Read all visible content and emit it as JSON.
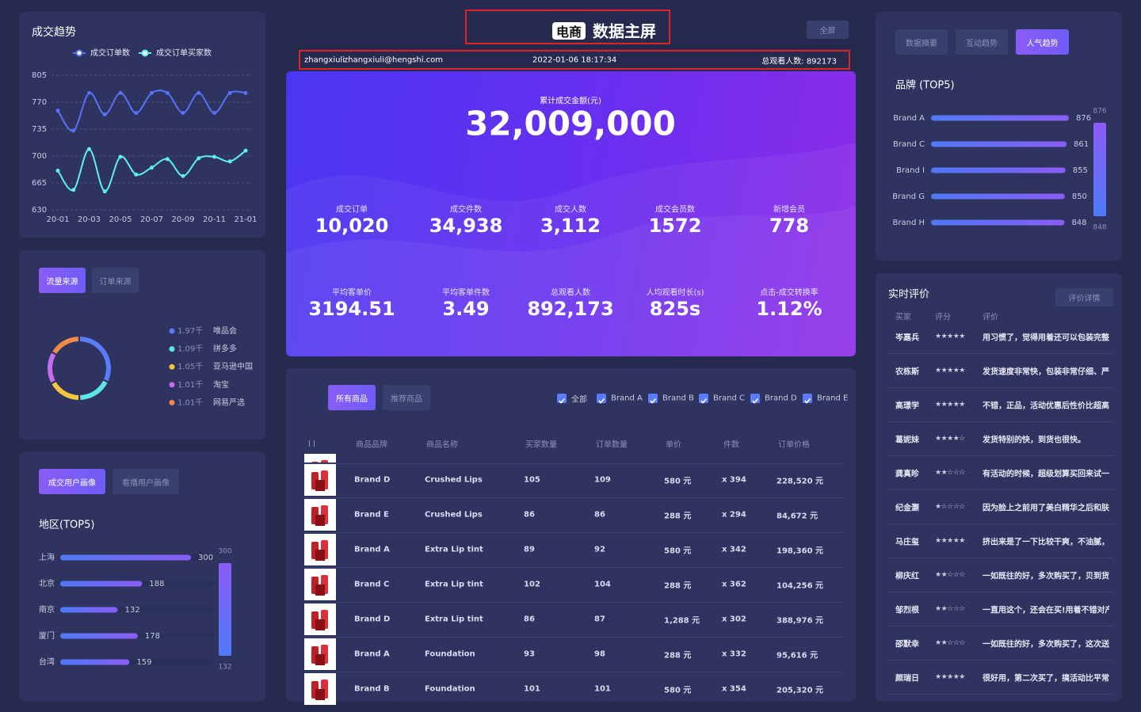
{
  "header": {
    "logo": "电商",
    "title": "数据主屏",
    "fullscreen": "全屏",
    "user": "zhangxiuli",
    "email": "zhangxiuli@hengshi.com",
    "datetime": "2022-01-06  18:17:34",
    "viewers": "总观看人数: 892173"
  },
  "kpi": {
    "total_label": "累计成交金额(元)",
    "total_value": "32,009,000",
    "items": [
      {
        "label": "成交订单",
        "value": "10,020"
      },
      {
        "label": "成交件数",
        "value": "34,938"
      },
      {
        "label": "成交人数",
        "value": "3,112"
      },
      {
        "label": "成交会员数",
        "value": "1572"
      },
      {
        "label": "新增会员",
        "value": "778"
      },
      {
        "label": "平均客单价",
        "value": "3194.51"
      },
      {
        "label": "平均客单件数",
        "value": "3.49"
      },
      {
        "label": "总观看人数",
        "value": "892,173"
      },
      {
        "label": "人均观看时长(s)",
        "value": "825s"
      },
      {
        "label": "点击-成交转换率",
        "value": "1.12%"
      }
    ]
  },
  "chart_data": [
    {
      "type": "line",
      "title": "成交趋势",
      "categories": [
        "20-01",
        null,
        "20-03",
        null,
        "20-05",
        null,
        "20-07",
        null,
        "20-09",
        null,
        "20-11",
        null,
        "21-01"
      ],
      "series": [
        {
          "name": "成交订单数",
          "color": "#5673f7",
          "values": [
            759,
            733,
            782,
            754,
            782,
            756,
            782,
            782,
            756,
            782,
            756,
            782,
            782
          ]
        },
        {
          "name": "成交订单买家数",
          "color": "#5ef0ee",
          "values": [
            681,
            656,
            709,
            654,
            699,
            676,
            685,
            696,
            674,
            697,
            699,
            693,
            707
          ]
        }
      ],
      "ylim": [
        630,
        805
      ],
      "yticks": [
        630,
        665,
        700,
        735,
        770,
        805
      ],
      "grid": true,
      "legend": "top"
    },
    {
      "type": "donut",
      "tabs": [
        "流量来源",
        "订单来源"
      ],
      "active_tab": 0,
      "categories": [
        "唯品会",
        "拼多多",
        "亚马逊中国",
        "淘宝",
        "网易严选"
      ],
      "values": [
        1.97,
        1.09,
        1.05,
        1.01,
        1.01
      ],
      "value_labels": [
        "1.97千",
        "1.09千",
        "1.05千",
        "1.01千",
        "1.01千"
      ],
      "colors": [
        "#5b7cfa",
        "#5ee6e6",
        "#f5c542",
        "#c66cf0",
        "#f08a4b"
      ]
    },
    {
      "type": "hbar",
      "tabs": [
        "成交用户画像",
        "看播用户画像"
      ],
      "active_tab": 0,
      "title": "地区(TOP5)",
      "categories": [
        "上海",
        "北京",
        "南京",
        "厦门",
        "台湾"
      ],
      "values": [
        300,
        188,
        132,
        178,
        159
      ],
      "colors": [
        "#4f7af7",
        "#8b5cf6"
      ],
      "visual_map": {
        "max": 300,
        "min": 132
      }
    },
    {
      "type": "hbar",
      "tabs": [
        "数据摘要",
        "互动趋势",
        "人气趋势"
      ],
      "active_tab": 2,
      "title": "品牌 (TOP5)",
      "categories": [
        "Brand A",
        "Brand C",
        "Brand I",
        "Brand G",
        "Brand H"
      ],
      "values": [
        876,
        861,
        855,
        850,
        848
      ],
      "colors": [
        "#4f7af7",
        "#8b5cf6"
      ],
      "visual_map": {
        "max": 876,
        "min": 848
      }
    }
  ],
  "table": {
    "tabs": [
      "所有商品",
      "推荐商品"
    ],
    "active_tab": 0,
    "filters": [
      "全部",
      "Brand A",
      "Brand B",
      "Brand C",
      "Brand D",
      "Brand E"
    ],
    "columns": [
      "商品品牌",
      "商品名称",
      "买家数量",
      "订单数量",
      "单价",
      "件数",
      "订单价格"
    ],
    "rows": [
      [
        "Brand D",
        "Crushed Lips",
        "105",
        "109",
        "580 元",
        "x 394",
        "228,520 元"
      ],
      [
        "Brand E",
        "Crushed Lips",
        "86",
        "86",
        "288 元",
        "x 294",
        "84,672 元"
      ],
      [
        "Brand A",
        "Extra Lip tint",
        "89",
        "92",
        "580 元",
        "x 342",
        "198,360 元"
      ],
      [
        "Brand C",
        "Extra Lip tint",
        "102",
        "104",
        "288 元",
        "x 362",
        "104,256 元"
      ],
      [
        "Brand D",
        "Extra Lip tint",
        "86",
        "87",
        "1,288 元",
        "x 302",
        "388,976 元"
      ],
      [
        "Brand A",
        "Foundation",
        "93",
        "98",
        "288 元",
        "x 332",
        "95,616 元"
      ],
      [
        "Brand B",
        "Foundation",
        "101",
        "101",
        "580 元",
        "x 354",
        "205,320 元"
      ]
    ]
  },
  "reviews": {
    "title": "实时评价",
    "button": "评价详情",
    "columns": [
      "买家",
      "评分",
      "评价"
    ],
    "rows": [
      [
        "岑嘉兵",
        "★★★★★",
        "用习惯了，觉得用着还可以包装完整"
      ],
      [
        "农栋斯",
        "★★★★★",
        "发货速度非常快，包装非常仔细、严"
      ],
      [
        "高璟学",
        "★★★★★",
        "不错，正品，活动优惠后性价比超高"
      ],
      [
        "葛妮妹",
        "★★★★☆",
        "发货特别的快，到货也很快。"
      ],
      [
        "龚真昣",
        "★★☆☆☆",
        "有活动的时候，超级划算买回来试一"
      ],
      [
        "纪金灏",
        "★☆☆☆☆",
        "因为脸上之前用了美白精华之后和肤"
      ],
      [
        "马庄玺",
        "★★★★★",
        "挤出来是了一下比较干爽，不油腻，"
      ],
      [
        "柳庆红",
        "★★☆☆☆",
        "一如既往的好，多次购买了，贝到货"
      ],
      [
        "邹烈根",
        "★★☆☆☆",
        "一直用这个，还会在买!用着不错对产"
      ],
      [
        "邵默幸",
        "★★☆☆☆",
        "一如既往的好，多次购买了，这次送"
      ],
      [
        "颜瑞日",
        "★★★★★",
        "很好用，第二次买了，搞活动比平常"
      ]
    ]
  }
}
